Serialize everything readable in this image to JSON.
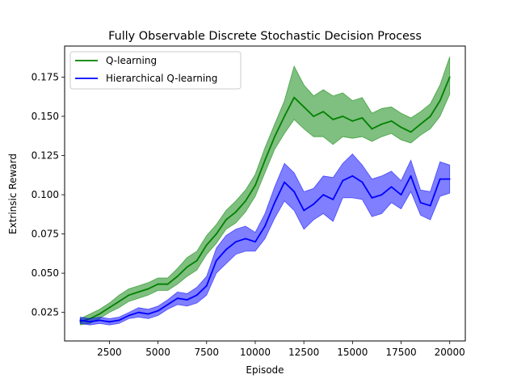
{
  "chart_data": {
    "type": "line",
    "title": "Fully Observable Discrete Stochastic Decision Process",
    "xlabel": "Episode",
    "ylabel": "Extrinsic Reward",
    "xlim": [
      200,
      20800
    ],
    "ylim": [
      0.0068,
      0.1948
    ],
    "xticks": [
      2500,
      5000,
      7500,
      10000,
      12500,
      15000,
      17500,
      20000
    ],
    "yticks": [
      0.025,
      0.05,
      0.075,
      0.1,
      0.125,
      0.15,
      0.175
    ],
    "xtick_labels": [
      "2500",
      "5000",
      "7500",
      "10000",
      "12500",
      "15000",
      "17500",
      "20000"
    ],
    "ytick_labels": [
      "0.025",
      "0.050",
      "0.075",
      "0.100",
      "0.125",
      "0.150",
      "0.175"
    ],
    "grid": false,
    "legend_position": "upper-left",
    "series": [
      {
        "name": "Q-learning",
        "color": "#008000",
        "x": [
          1000,
          1500,
          2000,
          2500,
          3000,
          3500,
          4000,
          4500,
          5000,
          5500,
          6000,
          6500,
          7000,
          7500,
          8000,
          8500,
          9000,
          9500,
          10000,
          10500,
          11000,
          11500,
          12000,
          12500,
          13000,
          13500,
          14000,
          14500,
          15000,
          15500,
          16000,
          16500,
          17000,
          17500,
          18000,
          18500,
          19000,
          19500,
          20000
        ],
        "y": [
          0.019,
          0.021,
          0.024,
          0.028,
          0.032,
          0.036,
          0.038,
          0.04,
          0.043,
          0.043,
          0.048,
          0.054,
          0.058,
          0.068,
          0.075,
          0.084,
          0.089,
          0.096,
          0.106,
          0.122,
          0.137,
          0.15,
          0.162,
          0.156,
          0.15,
          0.153,
          0.148,
          0.15,
          0.147,
          0.149,
          0.142,
          0.145,
          0.147,
          0.143,
          0.14,
          0.145,
          0.15,
          0.16,
          0.175
        ],
        "lower": [
          0.017,
          0.018,
          0.021,
          0.025,
          0.028,
          0.032,
          0.034,
          0.036,
          0.039,
          0.039,
          0.043,
          0.048,
          0.052,
          0.062,
          0.069,
          0.078,
          0.082,
          0.089,
          0.099,
          0.114,
          0.129,
          0.139,
          0.148,
          0.142,
          0.137,
          0.137,
          0.132,
          0.137,
          0.136,
          0.137,
          0.134,
          0.137,
          0.139,
          0.135,
          0.133,
          0.138,
          0.142,
          0.15,
          0.164
        ],
        "upper": [
          0.021,
          0.024,
          0.027,
          0.031,
          0.036,
          0.04,
          0.042,
          0.044,
          0.047,
          0.047,
          0.053,
          0.06,
          0.064,
          0.074,
          0.081,
          0.09,
          0.096,
          0.103,
          0.113,
          0.13,
          0.145,
          0.16,
          0.182,
          0.17,
          0.163,
          0.167,
          0.163,
          0.165,
          0.16,
          0.162,
          0.152,
          0.155,
          0.156,
          0.152,
          0.149,
          0.153,
          0.158,
          0.17,
          0.188
        ]
      },
      {
        "name": "Hierarchical Q-learning",
        "color": "#0000ff",
        "x": [
          1000,
          1500,
          2000,
          2500,
          3000,
          3500,
          4000,
          4500,
          5000,
          5500,
          6000,
          6500,
          7000,
          7500,
          8000,
          8500,
          9000,
          9500,
          10000,
          10500,
          11000,
          11500,
          12000,
          12500,
          13000,
          13500,
          14000,
          14500,
          15000,
          15500,
          16000,
          16500,
          17000,
          17500,
          18000,
          18500,
          19000,
          19500,
          20000
        ],
        "y": [
          0.02,
          0.019,
          0.02,
          0.019,
          0.02,
          0.023,
          0.025,
          0.024,
          0.026,
          0.03,
          0.034,
          0.033,
          0.036,
          0.042,
          0.058,
          0.065,
          0.07,
          0.072,
          0.07,
          0.08,
          0.095,
          0.108,
          0.102,
          0.09,
          0.094,
          0.1,
          0.097,
          0.109,
          0.112,
          0.108,
          0.098,
          0.1,
          0.105,
          0.1,
          0.112,
          0.095,
          0.093,
          0.11,
          0.11
        ],
        "lower": [
          0.018,
          0.017,
          0.018,
          0.017,
          0.018,
          0.021,
          0.022,
          0.021,
          0.023,
          0.027,
          0.03,
          0.029,
          0.031,
          0.036,
          0.05,
          0.056,
          0.062,
          0.064,
          0.064,
          0.072,
          0.085,
          0.096,
          0.09,
          0.078,
          0.084,
          0.088,
          0.083,
          0.098,
          0.098,
          0.097,
          0.086,
          0.088,
          0.095,
          0.091,
          0.102,
          0.087,
          0.084,
          0.099,
          0.101
        ],
        "upper": [
          0.022,
          0.021,
          0.022,
          0.021,
          0.022,
          0.025,
          0.028,
          0.027,
          0.029,
          0.033,
          0.038,
          0.037,
          0.041,
          0.048,
          0.066,
          0.074,
          0.078,
          0.08,
          0.076,
          0.088,
          0.105,
          0.12,
          0.114,
          0.102,
          0.104,
          0.112,
          0.111,
          0.12,
          0.126,
          0.119,
          0.11,
          0.112,
          0.115,
          0.109,
          0.122,
          0.103,
          0.102,
          0.121,
          0.119
        ]
      }
    ]
  }
}
